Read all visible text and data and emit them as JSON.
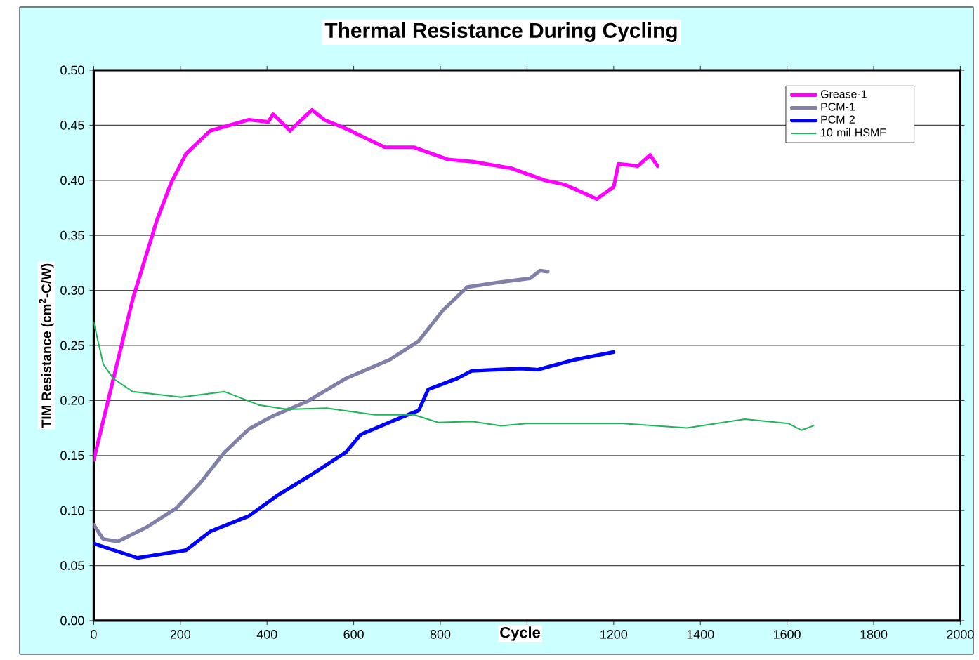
{
  "chart_data": {
    "type": "line",
    "title": "Thermal Resistance During Cycling",
    "xlabel": "Cycle",
    "ylabel": "TIM Resistance (cm$^{2}$-C/W)",
    "xlim": [
      0,
      2000
    ],
    "xticks": [
      0,
      200,
      400,
      600,
      800,
      {
        "value": 1000,
        "label": null
      },
      1200,
      1400,
      1600,
      1800,
      2000
    ],
    "ylim": [
      0,
      0.5
    ],
    "yticks": [
      {
        "value": 0,
        "label": "0.00"
      },
      {
        "value": 0.05,
        "label": "0.05"
      },
      {
        "value": 0.1,
        "label": "0.10"
      },
      {
        "value": 0.15,
        "label": "0.15"
      },
      {
        "value": 0.2,
        "label": "0.20"
      },
      {
        "value": 0.25,
        "label": "0.25"
      },
      {
        "value": 0.3,
        "label": "0.30"
      },
      {
        "value": 0.35,
        "label": "0.35"
      },
      {
        "value": 0.4,
        "label": "0.40"
      },
      {
        "value": 0.45,
        "label": "0.45"
      },
      {
        "value": 0.5,
        "label": "0.50"
      }
    ],
    "grid": "y",
    "legend": "top right",
    "marker": "none",
    "line_style": "solid",
    "series": [
      {
        "name": "Grease-1",
        "color": "#ff00ff",
        "x": [
          0,
          90,
          146,
          179,
          213,
          269,
          358,
          403,
          414,
          453,
          504,
          532,
          582,
          672,
          739,
          817,
          873,
          963,
          1041,
          1088,
          1161,
          1200,
          1211,
          1256,
          1284,
          1301
        ],
        "values": [
          0.146,
          0.292,
          0.364,
          0.398,
          0.424,
          0.445,
          0.455,
          0.453,
          0.46,
          0.445,
          0.464,
          0.455,
          0.447,
          0.43,
          0.43,
          0.419,
          0.417,
          0.411,
          0.4,
          0.396,
          0.383,
          0.394,
          0.415,
          0.413,
          0.423,
          0.413
        ]
      },
      {
        "name": "PCM-1",
        "color": "#8080a8",
        "x": [
          0,
          22,
          56,
          123,
          190,
          246,
          302,
          358,
          414,
          492,
          582,
          683,
          750,
          806,
          862,
          929,
          1007,
          1030,
          1048
        ],
        "values": [
          0.087,
          0.074,
          0.072,
          0.085,
          0.102,
          0.125,
          0.153,
          0.174,
          0.186,
          0.199,
          0.22,
          0.237,
          0.254,
          0.282,
          0.303,
          0.307,
          0.311,
          0.318,
          0.317
        ]
      },
      {
        "name": "PCM 2",
        "color": "#0000ff",
        "x": [
          0,
          101,
          213,
          269,
          358,
          425,
          504,
          582,
          616,
          694,
          750,
          772,
          839,
          873,
          985,
          1025,
          1110,
          1200
        ],
        "values": [
          0.07,
          0.057,
          0.064,
          0.081,
          0.095,
          0.114,
          0.133,
          0.153,
          0.169,
          0.182,
          0.191,
          0.21,
          0.22,
          0.227,
          0.229,
          0.228,
          0.237,
          0.244
        ]
      },
      {
        "name": "10 mil HSMF",
        "color": "#1fb45a",
        "x": [
          0,
          22,
          45,
          90,
          201,
          302,
          381,
          448,
          537,
          649,
          739,
          795,
          873,
          940,
          998,
          1222,
          1369,
          1503,
          1604,
          1633,
          1661
        ],
        "values": [
          0.271,
          0.233,
          0.22,
          0.208,
          0.203,
          0.208,
          0.196,
          0.192,
          0.193,
          0.187,
          0.187,
          0.18,
          0.181,
          0.177,
          0.179,
          0.179,
          0.175,
          0.183,
          0.179,
          0.173,
          0.177
        ]
      }
    ]
  }
}
